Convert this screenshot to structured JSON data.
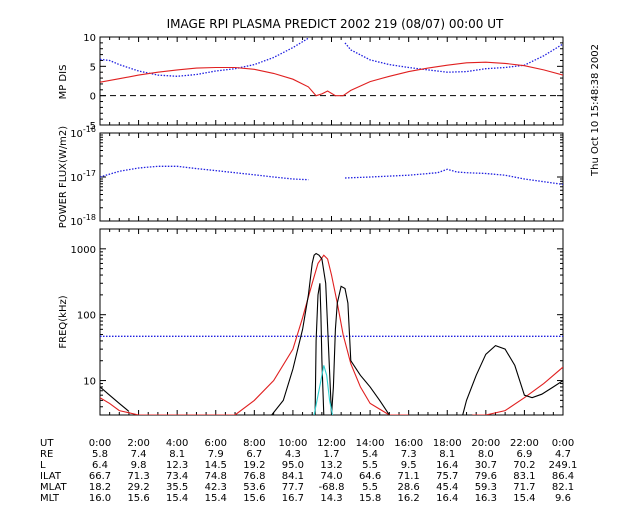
{
  "title": "IMAGE   RPI PLASMA PREDICT 2002 219 (08/07) 00:00 UT",
  "timestamp": "Thu Oct 10 15:48:38 2002",
  "colors": {
    "blue": "#2020e0",
    "red": "#e02020",
    "black": "#000000",
    "cyan": "#30d0d0"
  },
  "chart_data": [
    {
      "type": "line",
      "ylabel": "MP DIS",
      "ylim": [
        -5,
        10
      ],
      "yticks": [
        "-5",
        "0",
        "5",
        "10"
      ],
      "reference_line": 0,
      "series": [
        {
          "color": "blue",
          "style": "dotted",
          "x": [
            0,
            0.5,
            1,
            2,
            3,
            4,
            5,
            6,
            7,
            8,
            9,
            10,
            10.8,
            null,
            12.7,
            13,
            14,
            15,
            16,
            17,
            18,
            19,
            20,
            21,
            22,
            23,
            24
          ],
          "y": [
            6.2,
            6.0,
            5.3,
            4.2,
            3.5,
            3.3,
            3.6,
            4.2,
            4.6,
            5.3,
            6.5,
            8.2,
            9.8,
            null,
            9.0,
            7.8,
            6.1,
            5.3,
            4.8,
            4.4,
            4.0,
            4.1,
            4.6,
            4.8,
            5.2,
            6.8,
            8.8
          ]
        },
        {
          "color": "red",
          "style": "solid",
          "x": [
            0,
            1,
            2,
            3,
            4,
            5,
            6,
            7,
            8,
            9,
            10,
            10.8,
            11.2,
            11.5,
            11.8,
            12.2,
            12.6,
            13,
            14,
            15,
            16,
            17,
            18,
            19,
            20,
            21,
            22,
            23,
            24
          ],
          "y": [
            2.3,
            2.9,
            3.5,
            4.0,
            4.4,
            4.7,
            4.8,
            4.8,
            4.5,
            3.8,
            2.8,
            1.5,
            0.0,
            0.3,
            0.8,
            0.0,
            0.0,
            0.9,
            2.4,
            3.3,
            4.1,
            4.7,
            5.2,
            5.6,
            5.7,
            5.5,
            5.1,
            4.4,
            3.5
          ]
        }
      ]
    },
    {
      "type": "line",
      "ylabel": "POWER FLUX(W/m2)",
      "yscale": "log",
      "ylim": [
        1e-18,
        1e-16
      ],
      "yticks": [
        {
          "base": "10",
          "exp": "-16"
        },
        {
          "base": "10",
          "exp": "-17"
        },
        {
          "base": "10",
          "exp": "-18"
        }
      ],
      "series": [
        {
          "color": "blue",
          "style": "dotted",
          "x": [
            0,
            1,
            2,
            3,
            4,
            5,
            6,
            7,
            8,
            9,
            10,
            10.8,
            null,
            12.7,
            14,
            16,
            17.5,
            18,
            18.5,
            19,
            20,
            21,
            22,
            23,
            24
          ],
          "y": [
            1e-17,
            1.35e-17,
            1.6e-17,
            1.75e-17,
            1.75e-17,
            1.55e-17,
            1.4e-17,
            1.25e-17,
            1.12e-17,
            1e-17,
            9e-18,
            8.7e-18,
            null,
            9.5e-18,
            1e-17,
            1.1e-17,
            1.25e-17,
            1.5e-17,
            1.3e-17,
            1.25e-17,
            1.2e-17,
            1.1e-17,
            9e-18,
            7.8e-18,
            6.8e-18
          ]
        }
      ]
    },
    {
      "type": "line",
      "ylabel": "FREQ(kHz)",
      "yscale": "log",
      "ylim": [
        3,
        2000
      ],
      "yticks": [
        "1000",
        "100",
        "10"
      ],
      "series": [
        {
          "color": "blue",
          "style": "dotted",
          "x": [
            0,
            4,
            8,
            10,
            12,
            16,
            20,
            24
          ],
          "y": [
            47,
            47,
            47,
            47,
            47,
            47,
            47,
            47
          ]
        },
        {
          "color": "red",
          "style": "solid",
          "x": [
            0,
            0.5,
            1,
            2,
            3,
            4,
            5,
            6,
            7,
            8,
            9,
            10,
            10.5,
            11,
            11.3,
            11.6,
            11.8,
            12,
            12.3,
            12.6,
            13,
            13.5,
            14,
            15,
            16,
            null,
            19.3,
            20,
            21,
            22,
            23,
            24
          ],
          "y": [
            5.5,
            4.5,
            3.5,
            3,
            3,
            3,
            3,
            3,
            3,
            5,
            10,
            30,
            90,
            300,
            600,
            800,
            700,
            400,
            150,
            50,
            18,
            8,
            4.5,
            3,
            3,
            null,
            3,
            3,
            3.5,
            5.5,
            9,
            16
          ]
        },
        {
          "color": "black",
          "style": "solid",
          "x": [
            0,
            0.5,
            1,
            1.5,
            null,
            8.9,
            9.5,
            10,
            10.5,
            10.8,
            11.0,
            11.1,
            11.2,
            11.35,
            11.5,
            11.7,
            11.85,
            12.0,
            12.1,
            12.2,
            12.3,
            12.5,
            12.7,
            12.85,
            13.0,
            13.5,
            14.0,
            14.5,
            15.0,
            null,
            18.8,
            19.0,
            19.5,
            20.0,
            20.5,
            21.0,
            21.5,
            22.0,
            22.4,
            22.9,
            23.5,
            24.0
          ],
          "y": [
            8,
            6,
            4.5,
            3.4,
            null,
            3.0,
            5,
            15,
            60,
            200,
            600,
            800,
            850,
            800,
            700,
            300,
            30,
            3,
            8,
            60,
            150,
            270,
            250,
            150,
            20,
            12,
            8,
            5,
            3,
            null,
            3,
            5,
            12,
            25,
            34,
            30,
            17,
            6,
            5.5,
            6.2,
            8,
            10
          ]
        },
        {
          "color": "black",
          "style": "solid",
          "x": [
            11.15,
            11.2,
            11.3,
            11.4,
            11.45,
            11.5,
            11.6
          ],
          "y": [
            3,
            40,
            200,
            300,
            100,
            20,
            3
          ]
        },
        {
          "color": "cyan",
          "style": "solid",
          "x": [
            11.1,
            11.25,
            11.45,
            11.6,
            11.75,
            11.9,
            12.05
          ],
          "y": [
            3,
            5,
            10,
            17,
            12,
            5,
            3
          ]
        }
      ]
    }
  ],
  "table": {
    "rows": [
      {
        "label": "UT",
        "values": [
          "0:00",
          "2:00",
          "4:00",
          "6:00",
          "8:00",
          "10:00",
          "12:00",
          "14:00",
          "16:00",
          "18:00",
          "20:00",
          "22:00",
          "0:00"
        ]
      },
      {
        "label": "RE",
        "values": [
          "5.8",
          "7.4",
          "8.1",
          "7.9",
          "6.7",
          "4.3",
          "1.7",
          "5.4",
          "7.3",
          "8.1",
          "8.0",
          "6.9",
          "4.7"
        ]
      },
      {
        "label": "L",
        "values": [
          "6.4",
          "9.8",
          "12.3",
          "14.5",
          "19.2",
          "95.0",
          "13.2",
          "5.5",
          "9.5",
          "16.4",
          "30.7",
          "70.2",
          "249.1"
        ]
      },
      {
        "label": "ILAT",
        "values": [
          "66.7",
          "71.3",
          "73.4",
          "74.8",
          "76.8",
          "84.1",
          "74.0",
          "64.6",
          "71.1",
          "75.7",
          "79.6",
          "83.1",
          "86.4"
        ]
      },
      {
        "label": "MLAT",
        "values": [
          "18.2",
          "29.2",
          "35.5",
          "42.3",
          "53.6",
          "77.7",
          "-68.8",
          "5.5",
          "28.6",
          "45.4",
          "59.3",
          "71.7",
          "82.1"
        ]
      },
      {
        "label": "MLT",
        "values": [
          "16.0",
          "15.6",
          "15.4",
          "15.4",
          "15.6",
          "16.7",
          "14.3",
          "15.8",
          "16.2",
          "16.4",
          "16.3",
          "15.4",
          "9.6"
        ]
      }
    ]
  }
}
